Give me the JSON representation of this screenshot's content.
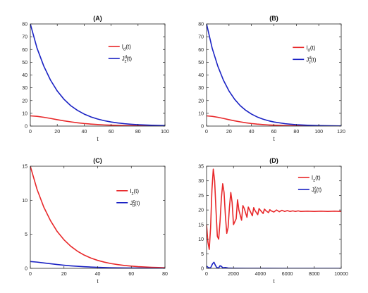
{
  "chart_data": [
    {
      "id": "A",
      "type": "line",
      "title": "(A)",
      "xlabel": "t",
      "ylabel": "",
      "xlim": [
        0,
        100
      ],
      "ylim": [
        0,
        80
      ],
      "xticks": [
        0,
        20,
        40,
        60,
        80,
        100
      ],
      "yticks": [
        0,
        10,
        20,
        30,
        40,
        50,
        60,
        70,
        80
      ],
      "grid": false,
      "legend_position": "right",
      "series": [
        {
          "name": "I_d(t)",
          "label_main": "I",
          "label_sub": "d",
          "label_sup": "",
          "label_tail": "(t)",
          "color": "#e8282a",
          "x": [
            0,
            5,
            10,
            15,
            20,
            25,
            30,
            35,
            40,
            45,
            50,
            55,
            60,
            65,
            70,
            75,
            80,
            85,
            90,
            95,
            100
          ],
          "y": [
            8,
            7.6,
            6.9,
            6.0,
            5.0,
            4.1,
            3.3,
            2.6,
            2.0,
            1.55,
            1.2,
            0.9,
            0.7,
            0.52,
            0.4,
            0.3,
            0.22,
            0.17,
            0.13,
            0.1,
            0.07
          ]
        },
        {
          "name": "J^d_z(t)",
          "label_main": "J",
          "label_sub": "z",
          "label_sup": "d",
          "label_tail": "(t)",
          "color": "#1a22c4",
          "x": [
            0,
            5,
            10,
            15,
            20,
            25,
            30,
            35,
            40,
            45,
            50,
            55,
            60,
            65,
            70,
            75,
            80,
            85,
            90,
            95,
            100
          ],
          "y": [
            80,
            61,
            47,
            36,
            27.5,
            21,
            16,
            12.3,
            9.4,
            7.2,
            5.5,
            4.2,
            3.2,
            2.45,
            1.87,
            1.43,
            1.09,
            0.84,
            0.64,
            0.49,
            0.37
          ]
        }
      ]
    },
    {
      "id": "B",
      "type": "line",
      "title": "(B)",
      "xlabel": "t",
      "ylabel": "",
      "xlim": [
        0,
        120
      ],
      "ylim": [
        0,
        80
      ],
      "xticks": [
        0,
        20,
        40,
        60,
        80,
        100,
        120
      ],
      "yticks": [
        0,
        10,
        20,
        30,
        40,
        50,
        60,
        70,
        80
      ],
      "grid": false,
      "legend_position": "right",
      "series": [
        {
          "name": "I_d(t)",
          "label_main": "I",
          "label_sub": "d",
          "label_sup": "",
          "label_tail": "(t)",
          "color": "#e8282a",
          "x": [
            0,
            5,
            10,
            15,
            20,
            25,
            30,
            35,
            40,
            45,
            50,
            55,
            60,
            70,
            80,
            90,
            100,
            110,
            120
          ],
          "y": [
            8,
            7.6,
            6.9,
            6.0,
            5.0,
            4.1,
            3.3,
            2.6,
            2.0,
            1.55,
            1.2,
            0.9,
            0.7,
            0.4,
            0.22,
            0.13,
            0.07,
            0.04,
            0.02
          ]
        },
        {
          "name": "J^d_z(t)",
          "label_main": "J",
          "label_sub": "z",
          "label_sup": "d",
          "label_tail": "(t)",
          "color": "#1a22c4",
          "x": [
            0,
            5,
            10,
            15,
            20,
            25,
            30,
            35,
            40,
            45,
            50,
            55,
            60,
            70,
            80,
            90,
            100,
            110,
            120
          ],
          "y": [
            80,
            61,
            47,
            36,
            27.5,
            21,
            16,
            12.3,
            9.4,
            7.2,
            5.5,
            4.2,
            3.2,
            1.87,
            1.09,
            0.64,
            0.37,
            0.22,
            0.13
          ]
        }
      ]
    },
    {
      "id": "C",
      "type": "line",
      "title": "(C)",
      "xlabel": "t",
      "ylabel": "",
      "xlim": [
        0,
        80
      ],
      "ylim": [
        0,
        15
      ],
      "xticks": [
        0,
        20,
        40,
        60,
        80
      ],
      "yticks": [
        0,
        5,
        10,
        15
      ],
      "grid": false,
      "legend_position": "right",
      "series": [
        {
          "name": "I_z(t)",
          "label_main": "I",
          "label_sub": "z",
          "label_sup": "",
          "label_tail": "(t)",
          "color": "#e8282a",
          "x": [
            0,
            4,
            8,
            12,
            16,
            20,
            24,
            28,
            32,
            36,
            40,
            44,
            48,
            52,
            56,
            60,
            64,
            68,
            72,
            76,
            80
          ],
          "y": [
            15,
            11.6,
            9.0,
            7.0,
            5.4,
            4.2,
            3.25,
            2.52,
            1.95,
            1.51,
            1.17,
            0.91,
            0.7,
            0.55,
            0.42,
            0.33,
            0.25,
            0.2,
            0.15,
            0.12,
            0.09
          ]
        },
        {
          "name": "J^z_d(t)",
          "label_main": "J",
          "label_sub": "d",
          "label_sup": "z",
          "label_tail": "(t)",
          "color": "#1a22c4",
          "x": [
            0,
            4,
            8,
            12,
            16,
            20,
            24,
            28,
            32,
            36,
            40,
            48,
            56,
            64,
            72,
            80
          ],
          "y": [
            1.0,
            0.92,
            0.8,
            0.68,
            0.56,
            0.46,
            0.37,
            0.3,
            0.24,
            0.19,
            0.15,
            0.09,
            0.06,
            0.04,
            0.02,
            0.01
          ]
        }
      ]
    },
    {
      "id": "D",
      "type": "line",
      "title": "(D)",
      "xlabel": "t",
      "ylabel": "",
      "xlim": [
        0,
        10000
      ],
      "ylim": [
        0,
        35
      ],
      "xticks": [
        0,
        2000,
        4000,
        6000,
        8000,
        10000
      ],
      "yticks": [
        0,
        5,
        10,
        15,
        20,
        25,
        30,
        35
      ],
      "grid": false,
      "legend_position": "top-right",
      "series": [
        {
          "name": "I_z(t)",
          "label_main": "I",
          "label_sub": "z",
          "label_sup": "",
          "label_tail": "(t)",
          "color": "#e8282a",
          "x": [
            0,
            100,
            200,
            300,
            400,
            500,
            600,
            700,
            800,
            900,
            1000,
            1100,
            1200,
            1300,
            1400,
            1500,
            1600,
            1700,
            1800,
            1900,
            2000,
            2200,
            2300,
            2400,
            2600,
            2700,
            2800,
            3000,
            3100,
            3200,
            3400,
            3500,
            3600,
            3800,
            3900,
            4000,
            4200,
            4300,
            4400,
            4600,
            4700,
            4800,
            5000,
            5200,
            5400,
            5600,
            5800,
            6000,
            6200,
            6400,
            6600,
            6800,
            7000,
            7500,
            8000,
            8500,
            9000,
            9500,
            10000
          ],
          "y": [
            15,
            9,
            6.5,
            14,
            27,
            34,
            30,
            20,
            11,
            10,
            16,
            24,
            29,
            26,
            18,
            12,
            14,
            21,
            26,
            22.5,
            15,
            17,
            23.5,
            20,
            16.5,
            21.5,
            20.5,
            17.5,
            21,
            20,
            18,
            20.8,
            19.8,
            18.4,
            20.5,
            19.9,
            18.8,
            20.3,
            19.8,
            19.1,
            20.1,
            19.7,
            19.3,
            20,
            19.4,
            19.9,
            19.5,
            19.8,
            19.5,
            19.7,
            19.5,
            19.7,
            19.5,
            19.6,
            19.5,
            19.6,
            19.5,
            19.6,
            19.5
          ]
        },
        {
          "name": "J^z_d(t)",
          "label_main": "J",
          "label_sub": "d",
          "label_sup": "z",
          "label_tail": "(t)",
          "color": "#1a22c4",
          "x": [
            0,
            150,
            300,
            450,
            550,
            650,
            750,
            900,
            1000,
            1100,
            1200,
            1400,
            1600,
            2000,
            3000,
            4000,
            6000,
            8000,
            10000
          ],
          "y": [
            0.8,
            0.2,
            0.2,
            1.6,
            2.1,
            1.1,
            0.3,
            0.15,
            0.9,
            0.7,
            0.2,
            0.3,
            0.1,
            0.05,
            0.02,
            0.01,
            0.0,
            0.0,
            0.0
          ]
        }
      ]
    }
  ]
}
